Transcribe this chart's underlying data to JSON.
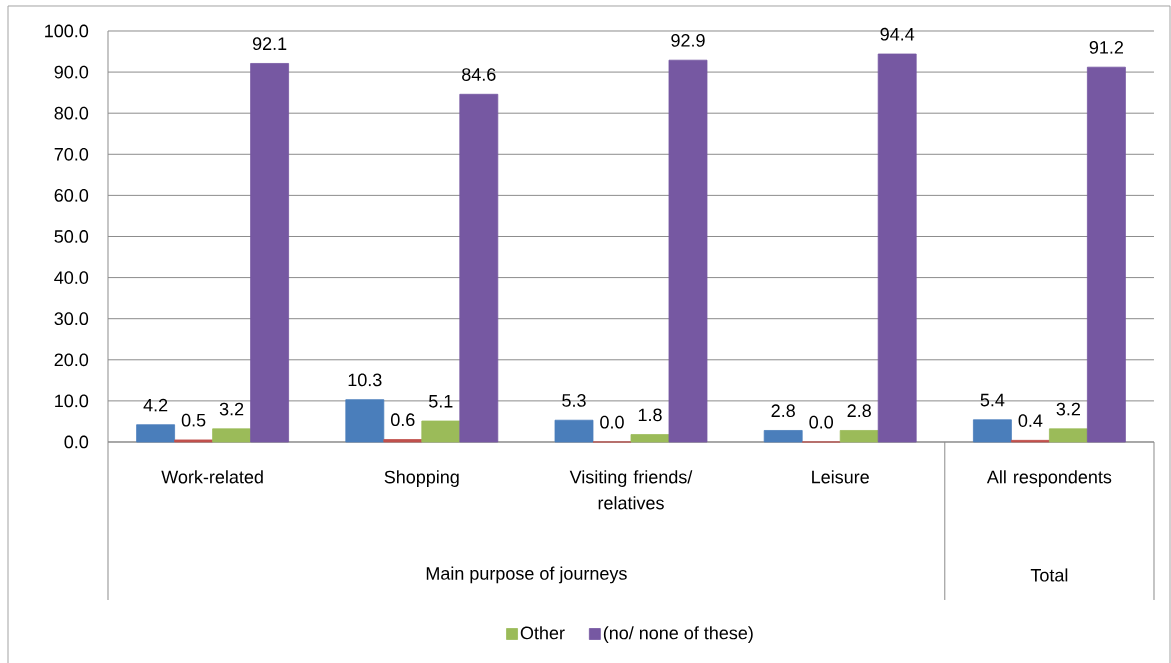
{
  "chart_data": {
    "type": "bar",
    "categories": [
      "Work-related",
      "Shopping",
      "Visiting friends/ relatives",
      "Leisure",
      "All respondents"
    ],
    "series": [
      {
        "color": "#4a7ebb",
        "values": [
          4.2,
          10.3,
          5.3,
          2.8,
          5.4
        ],
        "value_labels": [
          "4.2",
          "10.3",
          "5.3",
          "2.8",
          "5.4"
        ]
      },
      {
        "color": "#c0504d",
        "values": [
          0.5,
          0.6,
          0.0,
          0.0,
          0.4
        ],
        "value_labels": [
          "0.5",
          "0.6",
          "0.0",
          "0.0",
          "0.4"
        ]
      },
      {
        "name": "Other",
        "color": "#9bbb59",
        "values": [
          3.2,
          5.1,
          1.8,
          2.8,
          3.2
        ],
        "value_labels": [
          "3.2",
          "5.1",
          "1.8",
          "2.8",
          "3.2"
        ]
      },
      {
        "name": "(no/ none of these)",
        "color": "#7658a2",
        "values": [
          92.1,
          84.6,
          92.9,
          94.4,
          91.2
        ],
        "value_labels": [
          "92.1",
          "84.6",
          "92.9",
          "94.4",
          "91.2"
        ]
      }
    ],
    "ylim": [
      0,
      100
    ],
    "yticks": [
      {
        "value": 0,
        "label": "0.0"
      },
      {
        "value": 10,
        "label": "10.0"
      },
      {
        "value": 20,
        "label": "20.0"
      },
      {
        "value": 30,
        "label": "30.0"
      },
      {
        "value": 40,
        "label": "40.0"
      },
      {
        "value": 50,
        "label": "50.0"
      },
      {
        "value": 60,
        "label": "60.0"
      },
      {
        "value": 70,
        "label": "70.0"
      },
      {
        "value": 80,
        "label": "80.0"
      },
      {
        "value": 90,
        "label": "90.0"
      },
      {
        "value": 100,
        "label": "100.0"
      }
    ],
    "grid": "y",
    "legend": "bottom",
    "annotations": [
      "Main purpose of journeys",
      "Total"
    ]
  }
}
